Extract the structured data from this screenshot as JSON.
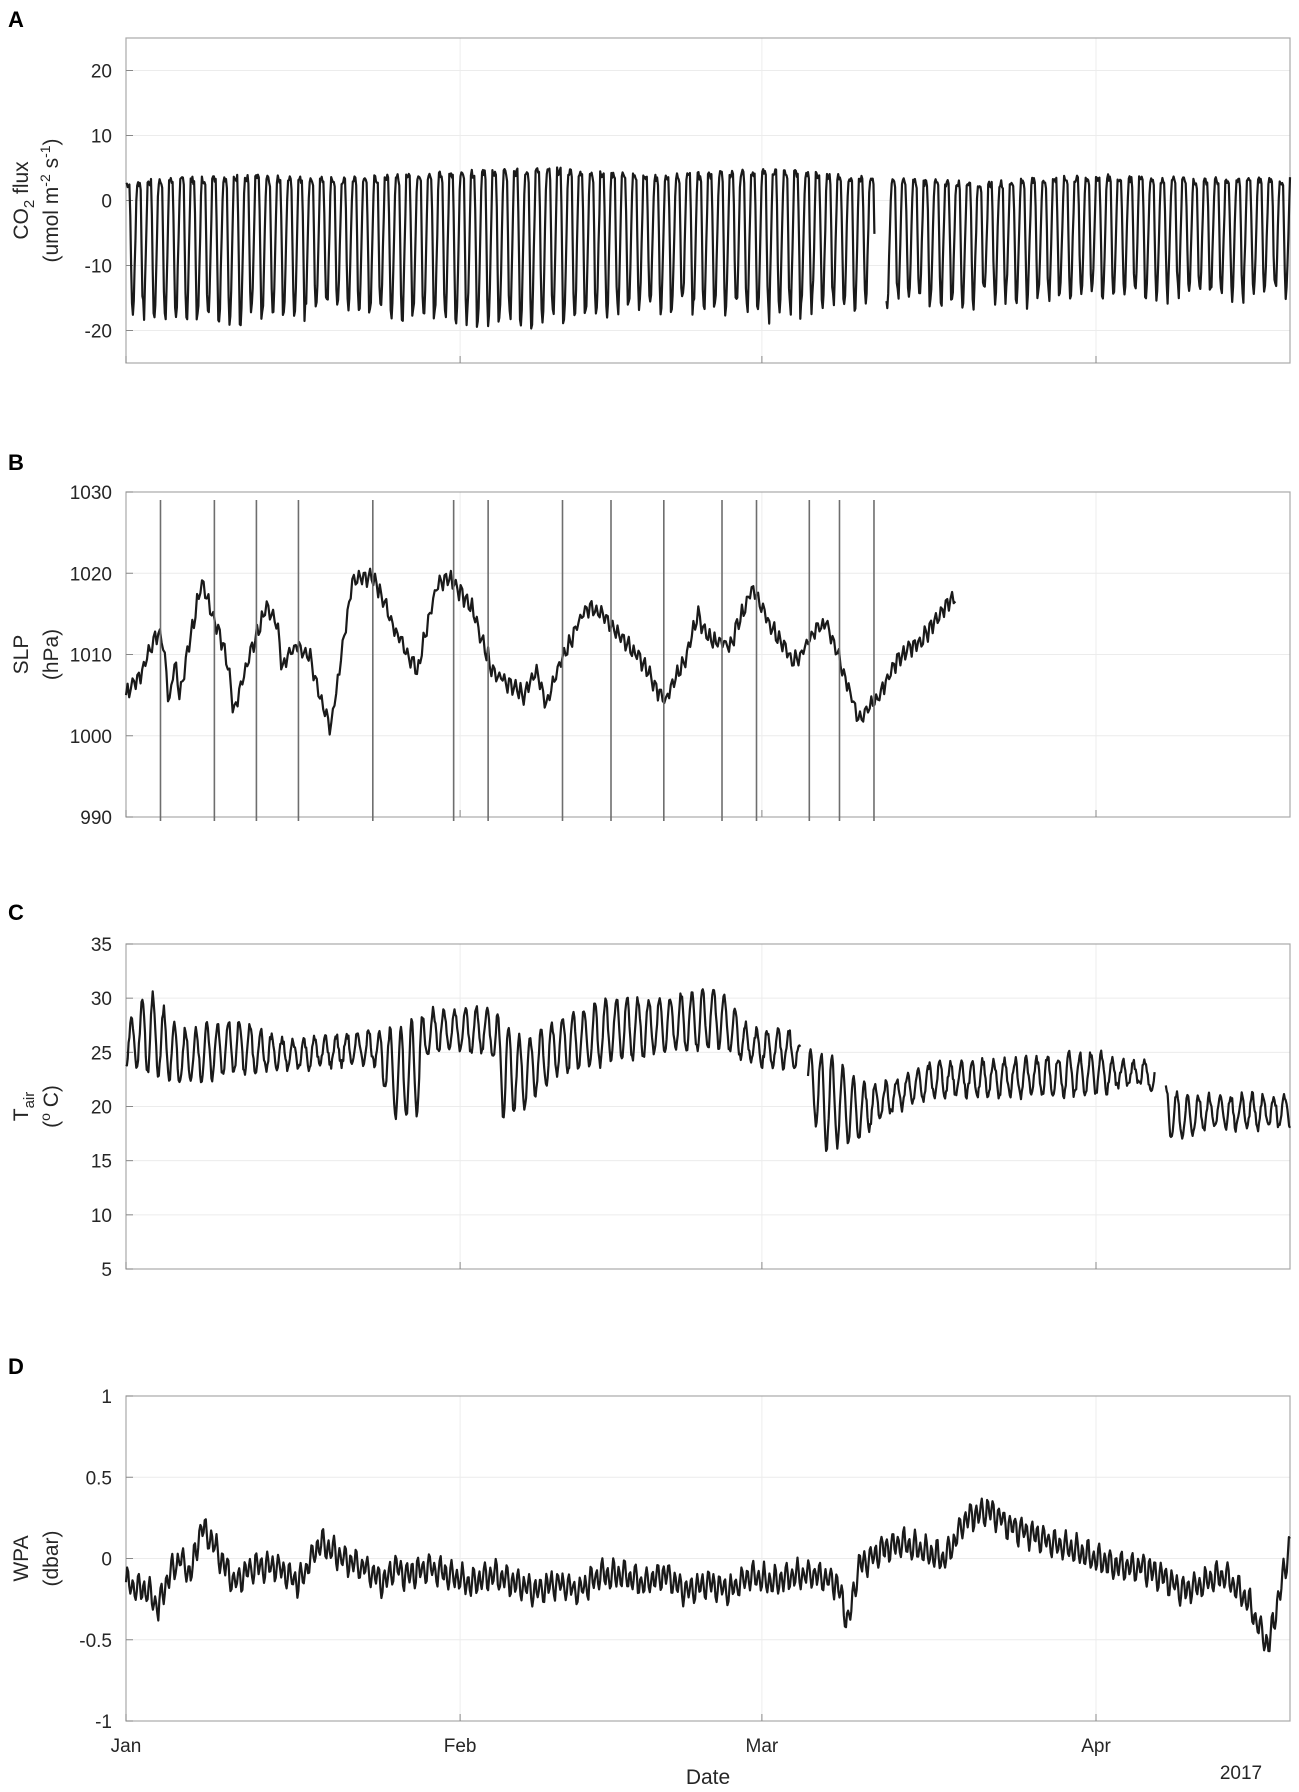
{
  "chart_data": [
    {
      "type": "line",
      "panel": "A",
      "ylabel_main": "CO",
      "ylabel_sub": "2",
      "ylabel_rest": " flux",
      "ylabel2_pre": "(umol m",
      "ylabel2_sup1": "-2",
      "ylabel2_mid": " s",
      "ylabel2_sup2": "-1",
      "ylabel2_post": ")",
      "ylim": [
        -25,
        25
      ],
      "yticks": [
        -20,
        -10,
        0,
        10,
        20
      ],
      "pattern": "diurnal",
      "base": 3.5,
      "amplitude": 20,
      "envelope": [
        [
          0,
          2.5,
          -17
        ],
        [
          10,
          3.5,
          -18
        ],
        [
          20,
          3,
          -16
        ],
        [
          30,
          4,
          -18
        ],
        [
          40,
          4.5,
          -18
        ],
        [
          50,
          3.5,
          -16
        ],
        [
          60,
          4.5,
          -17
        ],
        [
          70,
          3,
          -15
        ],
        [
          80,
          2.5,
          -15
        ],
        [
          90,
          3.5,
          -14
        ],
        [
          100,
          3,
          -14
        ],
        [
          108,
          3,
          -14
        ]
      ],
      "gaps": [
        [
          69.5,
          70.5
        ]
      ],
      "grid": true
    },
    {
      "type": "line",
      "panel": "B",
      "ylabel_main": "SLP",
      "ylabel2": "(hPa)",
      "ylim": [
        990,
        1030
      ],
      "yticks": [
        990,
        1000,
        1010,
        1020,
        1030
      ],
      "pattern": "synoptic",
      "x": [
        0,
        1.5,
        3,
        3.5,
        4,
        4.5,
        5,
        5.5,
        6,
        7,
        8,
        9,
        9.5,
        10,
        11,
        13,
        14,
        14.5,
        15,
        16,
        17,
        18,
        19,
        20,
        21,
        23,
        25,
        27,
        28,
        29,
        30,
        32,
        34,
        36,
        37,
        38,
        39,
        40,
        42,
        43,
        44,
        46,
        48,
        50,
        52,
        53,
        54,
        56,
        58,
        59,
        60,
        62,
        64,
        65,
        66,
        68,
        70,
        71,
        72,
        74,
        76,
        77
      ],
      "y": [
        1005,
        1008,
        1013,
        1011,
        1004,
        1009,
        1005,
        1009,
        1012,
        1019,
        1015,
        1011,
        1008,
        1003,
        1008,
        1016,
        1014,
        1008,
        1010,
        1011,
        1010,
        1005,
        1001,
        1010,
        1019,
        1019.5,
        1013,
        1008,
        1014,
        1019,
        1019.5,
        1016,
        1008,
        1006,
        1005,
        1008,
        1004,
        1008,
        1014,
        1016,
        1015,
        1012,
        1009,
        1004,
        1010,
        1015,
        1012,
        1011,
        1018,
        1016,
        1013,
        1009,
        1013,
        1014,
        1010,
        1002,
        1005,
        1008,
        1010,
        1012,
        1016,
        1017
      ],
      "x2": [
        71,
        72,
        73,
        74,
        75,
        76,
        77
      ],
      "y2": [
        1016,
        1012,
        1004,
        1000,
        1010,
        1014,
        1016
      ],
      "x3": [
        72.5,
        73.5,
        75,
        76,
        77
      ],
      "y3": [
        1013,
        1008,
        1012,
        1016,
        1009
      ],
      "end_x": 77,
      "event_lines_x": [
        3.2,
        8.2,
        12.1,
        16.0,
        22.9,
        30.4,
        33.6,
        40.5,
        45.0,
        49.9,
        55.3,
        58.5,
        63.4,
        66.2,
        69.4
      ],
      "grid": true
    },
    {
      "type": "line",
      "panel": "C",
      "ylabel_main": "T",
      "ylabel_sub": "air",
      "ylabel2_pre": "(",
      "ylabel2_sup": "o",
      "ylabel2_post": " C)",
      "ylim": [
        5,
        35
      ],
      "yticks": [
        5,
        10,
        15,
        20,
        25,
        30,
        35
      ],
      "pattern": "diurnal",
      "base": 24.5,
      "amplitude": 4,
      "envelope": [
        [
          0,
          27,
          24
        ],
        [
          2,
          31,
          23
        ],
        [
          5,
          27,
          22
        ],
        [
          10,
          28,
          23
        ],
        [
          15,
          26,
          23.5
        ],
        [
          23,
          27,
          24
        ],
        [
          25,
          27,
          19
        ],
        [
          27,
          28,
          19
        ],
        [
          28,
          29,
          25
        ],
        [
          34,
          29,
          25
        ],
        [
          35,
          28,
          19
        ],
        [
          37,
          26,
          20
        ],
        [
          40,
          28,
          23
        ],
        [
          45,
          30,
          24
        ],
        [
          50,
          30,
          25
        ],
        [
          55,
          31,
          25.5
        ],
        [
          58,
          27,
          24
        ],
        [
          62,
          27,
          23.5
        ],
        [
          63,
          25,
          21
        ],
        [
          65,
          25,
          16
        ],
        [
          68,
          22,
          17
        ],
        [
          70,
          22,
          19
        ],
        [
          75,
          24,
          21
        ],
        [
          85,
          24.5,
          21
        ],
        [
          90,
          25,
          21
        ],
        [
          93,
          24,
          22
        ],
        [
          95,
          24,
          22
        ],
        [
          96,
          22,
          17
        ],
        [
          98,
          21,
          17
        ],
        [
          100,
          21,
          18
        ],
        [
          108,
          21,
          18
        ]
      ],
      "gaps": [
        [
          62.6,
          63.2
        ],
        [
          95.5,
          96.4
        ]
      ],
      "grid": true
    },
    {
      "type": "line",
      "panel": "D",
      "ylabel_main": "WPA",
      "ylabel2": "(dbar)",
      "ylim": [
        -1,
        1
      ],
      "yticks": [
        -1,
        -0.5,
        0,
        0.5,
        1
      ],
      "ytick_labels": [
        "-1",
        "-0.5",
        "0",
        "0.5",
        "1"
      ],
      "pattern": "tidal",
      "x": [
        0,
        2,
        3,
        4,
        5,
        6,
        7,
        8,
        10,
        12,
        14,
        16,
        18,
        19,
        20,
        22,
        24,
        25,
        26,
        28,
        30,
        32,
        34,
        36,
        38,
        40,
        42,
        44,
        46,
        48,
        50,
        52,
        54,
        56,
        58,
        60,
        62,
        64,
        66,
        67,
        68,
        70,
        72,
        74,
        76,
        78,
        80,
        82,
        84,
        86,
        88,
        90,
        92,
        94,
        96,
        98,
        100,
        102,
        104,
        106,
        108
      ],
      "y": [
        -0.15,
        -0.2,
        -0.3,
        -0.1,
        0.0,
        -0.1,
        0.2,
        0.1,
        -0.15,
        -0.05,
        -0.05,
        -0.15,
        0.1,
        0.05,
        0.0,
        -0.05,
        -0.15,
        -0.05,
        -0.1,
        -0.05,
        -0.1,
        -0.15,
        -0.1,
        -0.15,
        -0.2,
        -0.15,
        -0.2,
        -0.1,
        -0.1,
        -0.15,
        -0.1,
        -0.2,
        -0.15,
        -0.2,
        -0.1,
        -0.15,
        -0.1,
        -0.1,
        -0.15,
        -0.4,
        -0.05,
        0.05,
        0.1,
        0.05,
        0.0,
        0.25,
        0.3,
        0.2,
        0.15,
        0.1,
        0.05,
        0.0,
        -0.05,
        -0.05,
        -0.1,
        -0.2,
        -0.15,
        -0.1,
        -0.25,
        -0.55,
        0.1
      ],
      "xlabel": "Date",
      "xticks": [
        0,
        31,
        59,
        90
      ],
      "xtick_labels": [
        "Jan",
        "Feb",
        "Mar",
        "Apr"
      ],
      "year_label": "2017",
      "grid": true
    }
  ]
}
